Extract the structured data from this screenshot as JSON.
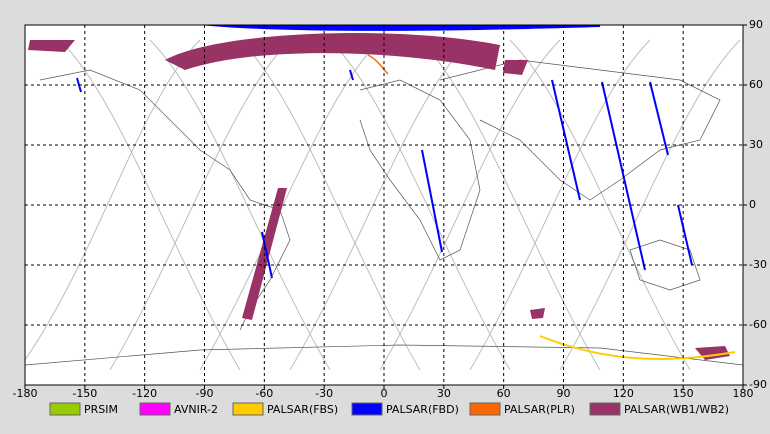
{
  "map": {
    "xlim": [
      -180,
      180
    ],
    "ylim": [
      -90,
      90
    ],
    "xticks": [
      -180,
      -150,
      -120,
      -90,
      -60,
      -30,
      0,
      30,
      60,
      90,
      120,
      150,
      180
    ],
    "yticks": [
      90,
      60,
      30,
      0,
      -30,
      -60,
      -90
    ],
    "grid": true,
    "legend": [
      {
        "name": "PRSIM",
        "color": "#99cc00"
      },
      {
        "name": "AVNIR-2",
        "color": "#ff00ff"
      },
      {
        "name": "PALSAR(FBS)",
        "color": "#ffcc00"
      },
      {
        "name": "PALSAR(FBD)",
        "color": "#0000ff"
      },
      {
        "name": "PALSAR(PLR)",
        "color": "#ff6600"
      },
      {
        "name": "PALSAR(WB1/WB2)",
        "color": "#993366"
      }
    ]
  }
}
